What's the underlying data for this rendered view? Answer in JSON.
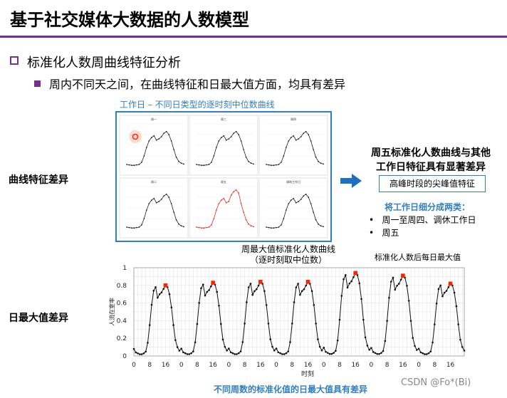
{
  "title": "基于社交媒体大数据的人数模型",
  "bullet1": "标准化人数周曲线特征分析",
  "bullet2": "周内不同天之间，在曲线特征和日最大值方面，均具有差异",
  "panel": {
    "title": "工作日  –  不同日类型的逐时刻中位数曲线",
    "mini_titles": [
      "周一",
      "周三",
      "周四",
      "周二",
      "周五",
      "调休工作日"
    ]
  },
  "labels": {
    "curve_diff": "曲线特征差异",
    "max_diff": "日最大值差异"
  },
  "friday": {
    "line1": "周五标准化人数曲线与其他",
    "line2": "工作日特征具有显著差异",
    "box": "高峰时段的尖峰值特征"
  },
  "split": {
    "title": "将工作日细分成两类：",
    "items": [
      "周一至周四、调休工作日",
      "周五"
    ]
  },
  "chart_head": {
    "title1": "周最大值标准化人数曲线",
    "title2": "（逐时刻取中位数）",
    "note": "标准化人数后每日最大值"
  },
  "chart_foot": "不同周数的标准化值的日最大值具有差异",
  "watermark": "CSDN @Fo*(Bi)",
  "colors": {
    "accent": "#7a2f8f",
    "blue": "#2f7fc1",
    "highlight": "#ff2200",
    "friday_line": "#e8321e"
  },
  "chart_data": {
    "type": "line",
    "xlabel": "时刻",
    "ylabel": "人流在室率",
    "ylim": [
      0,
      1
    ],
    "yticks": [
      0,
      0.2,
      0.4,
      0.6,
      0.8,
      1
    ],
    "xtick_labels": [
      "0",
      "8",
      "16",
      "0",
      "8",
      "16",
      "0",
      "8",
      "16",
      "0",
      "8",
      "16",
      "0",
      "8",
      "16",
      "0",
      "8",
      "16",
      "0",
      "8",
      "16"
    ],
    "daily_profile": [
      0.08,
      0.04,
      0.03,
      0.02,
      0.02,
      0.03,
      0.05,
      0.15,
      0.35,
      0.58,
      0.74,
      0.78,
      0.66,
      0.7,
      0.72,
      0.76,
      0.8,
      0.78,
      0.7,
      0.55,
      0.35,
      0.18,
      0.1,
      0.06
    ],
    "daily_max": [
      0.8,
      0.83,
      0.84,
      0.84,
      0.94,
      0.91,
      0.82
    ],
    "series": [
      {
        "name": "",
        "values": []
      }
    ]
  },
  "mini_profile": [
    0.05,
    0.04,
    0.03,
    0.03,
    0.04,
    0.05,
    0.1,
    0.25,
    0.45,
    0.6,
    0.68,
    0.72,
    0.62,
    0.65,
    0.7,
    0.78,
    0.82,
    0.75,
    0.6,
    0.4,
    0.22,
    0.12,
    0.08,
    0.06
  ]
}
